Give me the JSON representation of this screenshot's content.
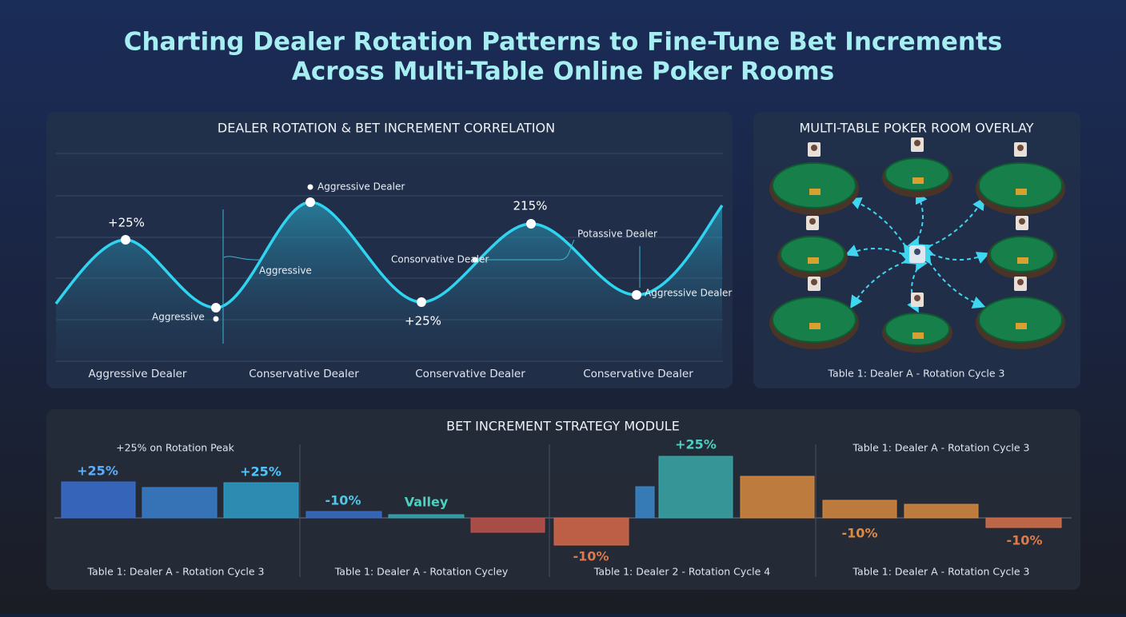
{
  "title_lines": [
    "Charting Dealer Rotation Patterns to Fine-Tune Bet Increments",
    "Across Multi-Table Online Poker Rooms"
  ],
  "rotation_panel": {
    "title": "DEALER ROTATION & BET INCREMENT CORRELATION",
    "annotations": [
      "+25%",
      "Aggressive Dealer",
      "215%",
      "Potassive Dealer",
      "Consorvative Dealer",
      "Aggressive",
      "Aggressive",
      "+25%",
      "Aggressive Dealer"
    ],
    "categories": [
      "Aggressive Dealer",
      "Conservative Dealer",
      "Conservative Dealer",
      "Conservative Dealer"
    ]
  },
  "room_panel": {
    "title": "MULTI-TABLE POKER ROOM OVERLAY",
    "caption": "Table 1: Dealer A - Rotation Cycle 3"
  },
  "strategy": {
    "title": "BET INCREMENT STRATEGY MODULE",
    "groups": [
      {
        "header": "+25% on Rotation Peak",
        "label": "Table 1: Dealer A - Rotation Cycle 3",
        "bars": [
          {
            "value": 22.5,
            "color": "#3a6fd0"
          },
          {
            "value": 19,
            "color": "#3a7fcc"
          },
          {
            "value": 22,
            "color": "#2f9cc8"
          }
        ],
        "notes": [
          {
            "text": "+25%",
            "color": "#5aaeff"
          },
          {
            "text": "+25%",
            "color": "#4fc4ff"
          }
        ]
      },
      {
        "label": "Table 1: Dealer A - Rotation Cycley",
        "bars": [
          {
            "value": 4,
            "color": "#3a6fc8"
          },
          {
            "value": 2,
            "color": "#3aa8b0"
          },
          {
            "value": -9,
            "color": "#c0524a"
          }
        ],
        "notes": [
          {
            "text": "-10%",
            "color": "#4fc8e8"
          },
          {
            "text": "Valley",
            "color": "#4fd0c0"
          }
        ]
      },
      {
        "label": "Table 1: Dealer 2 - Rotation Cycle 4",
        "bars": [
          {
            "value": -17,
            "color": "#d8684a"
          },
          {
            "value": 19.5,
            "color": "#3a88cc"
          },
          {
            "value": 38.5,
            "color": "#3aa8a8"
          },
          {
            "value": 26,
            "color": "#d88a40"
          }
        ],
        "notes": [
          {
            "text": "-10%",
            "color": "#e0784a"
          },
          {
            "text": "+25%",
            "color": "#4fd0c0"
          }
        ]
      },
      {
        "header": "Table 1: Dealer A - Rotation Cycle 3",
        "label": "Table 1: Dealer A - Rotation Cycle 3",
        "bars": [
          {
            "value": 11,
            "color": "#d8883e"
          },
          {
            "value": 8.5,
            "color": "#d88a40"
          },
          {
            "value": -6,
            "color": "#d8704a"
          }
        ],
        "notes": [
          {
            "text": "-10%",
            "color": "#e08a40"
          },
          {
            "text": "-10%",
            "color": "#e07a48"
          }
        ]
      }
    ]
  }
}
